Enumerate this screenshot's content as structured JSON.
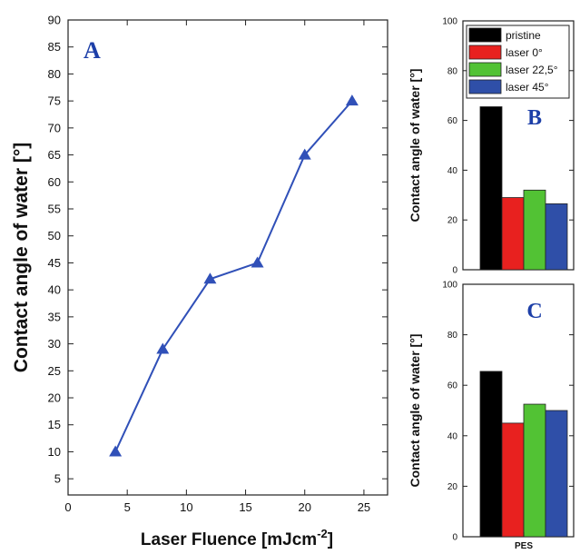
{
  "chart_data": [
    {
      "panel_label": "A",
      "type": "line",
      "marker": "triangle",
      "color": "#3050b8",
      "x": [
        4,
        8,
        12,
        16,
        20,
        24
      ],
      "y": [
        10,
        29,
        42,
        45,
        65,
        75
      ],
      "xlim": [
        0,
        27
      ],
      "ylim": [
        2,
        90
      ],
      "xticks": [
        0,
        5,
        10,
        15,
        20,
        25
      ],
      "yticks": [
        5,
        10,
        15,
        20,
        25,
        30,
        35,
        40,
        45,
        50,
        55,
        60,
        65,
        70,
        75,
        80,
        85,
        90
      ],
      "xlabel": "Laser Fluence [mJcm",
      "xlabel_superscript": "-2",
      "xlabel_end": "]",
      "ylabel": "Contact angle of water [°]"
    },
    {
      "panel_label": "B",
      "type": "bar",
      "ylim": [
        0,
        100
      ],
      "yticks": [
        0,
        20,
        40,
        60,
        80,
        100
      ],
      "ylabel": "Contact angle of water [°]",
      "series": [
        {
          "name": "pristine",
          "color": "#000000",
          "value": 65.5
        },
        {
          "name": "laser 0°",
          "color": "#e8211f",
          "value": 29
        },
        {
          "name": "laser 22,5°",
          "color": "#52c234",
          "value": 32
        },
        {
          "name": "laser 45°",
          "color": "#2f4fa8",
          "value": 26.5
        }
      ],
      "legend_position": "top"
    },
    {
      "panel_label": "C",
      "type": "bar",
      "ylim": [
        0,
        100
      ],
      "yticks": [
        0,
        20,
        40,
        60,
        80,
        100
      ],
      "ylabel": "Contact angle of water [°]",
      "category": "PES",
      "series": [
        {
          "name": "pristine",
          "color": "#000000",
          "value": 65.5
        },
        {
          "name": "laser 0°",
          "color": "#e8211f",
          "value": 45
        },
        {
          "name": "laser 22,5°",
          "color": "#52c234",
          "value": 52.5
        },
        {
          "name": "laser 45°",
          "color": "#2f4fa8",
          "value": 50
        }
      ]
    }
  ]
}
